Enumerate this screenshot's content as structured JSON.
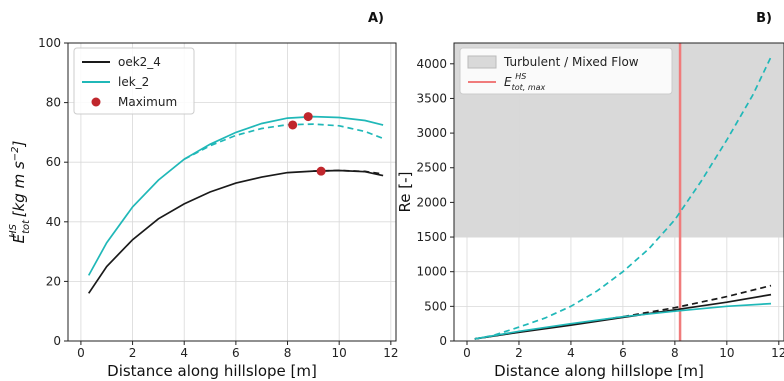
{
  "chart_data": [
    {
      "panel_label": "A)",
      "type": "line",
      "xlabel": "Distance along hillslope [m]",
      "ylabel_main": "E",
      "ylabel_sub": "tot",
      "ylabel_sup": "HS",
      "ylabel_units": " [kg m s",
      "ylabel_units_sup": "−2",
      "ylabel_units_end": "]",
      "xlim": [
        -0.5,
        12.2
      ],
      "ylim": [
        0,
        100
      ],
      "xticks": [
        0,
        2,
        4,
        6,
        8,
        10,
        12
      ],
      "yticks": [
        0,
        20,
        40,
        60,
        80,
        100
      ],
      "grid": true,
      "legend_placement": "top-left",
      "legend": [
        {
          "label": "oek2_4",
          "kind": "line",
          "color": "#1a1a1a"
        },
        {
          "label": "lek_2",
          "kind": "line",
          "color": "#20b8b8"
        },
        {
          "label": "Maximum",
          "kind": "marker",
          "color": "#c0272d"
        }
      ],
      "series": [
        {
          "color": "#1a1a1a",
          "dash": false,
          "x": [
            0.3,
            1,
            2,
            3,
            4,
            5,
            6,
            7,
            8,
            9,
            10,
            11,
            11.7
          ],
          "y": [
            16,
            25,
            34,
            41,
            46,
            50,
            53,
            55,
            56.5,
            57,
            57.2,
            56.8,
            55.5
          ]
        },
        {
          "color": "#1a1a1a",
          "dash": true,
          "x": [
            9,
            10,
            11,
            11.7
          ],
          "y": [
            57,
            57.2,
            56.9,
            56
          ]
        },
        {
          "color": "#20b8b8",
          "dash": false,
          "x": [
            0.3,
            1,
            2,
            3,
            4,
            5,
            6,
            7,
            8,
            9,
            10,
            11,
            11.7
          ],
          "y": [
            22,
            33,
            45,
            54,
            61,
            66,
            70,
            73,
            74.8,
            75.3,
            75,
            74,
            72.5
          ]
        },
        {
          "color": "#20b8b8",
          "dash": true,
          "x": [
            4,
            5,
            6,
            7,
            8,
            9,
            10,
            11,
            11.7
          ],
          "y": [
            61,
            65.5,
            69,
            71.3,
            72.6,
            72.8,
            72.2,
            70.3,
            68
          ]
        }
      ],
      "markers": [
        {
          "x": 8.2,
          "y": 72.5,
          "color": "#c0272d"
        },
        {
          "x": 8.8,
          "y": 75.3,
          "color": "#c0272d"
        },
        {
          "x": 9.3,
          "y": 57,
          "color": "#c0272d"
        }
      ]
    },
    {
      "panel_label": "B)",
      "type": "line",
      "xlabel": "Distance along hillslope [m]",
      "ylabel_main": "Re [-]",
      "xlim": [
        -0.5,
        12.2
      ],
      "ylim": [
        0,
        4300
      ],
      "xticks": [
        0,
        2,
        4,
        6,
        8,
        10,
        12
      ],
      "yticks": [
        0,
        500,
        1000,
        1500,
        2000,
        2500,
        3000,
        3500,
        4000
      ],
      "grid": true,
      "legend_placement": "top-left",
      "shaded_region": {
        "y_from": 1500,
        "y_to": 4300,
        "color": "#d9d9d9"
      },
      "vertical_line": {
        "x": 8.2,
        "color": "#f07b7b"
      },
      "legend": [
        {
          "label": "Turbulent / Mixed Flow",
          "kind": "patch",
          "color": "#d9d9d9"
        },
        {
          "label_main": "E",
          "label_sub": "tot, max",
          "label_sup": "HS",
          "kind": "line",
          "color": "#f07b7b"
        }
      ],
      "series": [
        {
          "color": "#20b8b8",
          "dash": true,
          "x": [
            0.3,
            1,
            2,
            3,
            4,
            5,
            6,
            7,
            8,
            9,
            10,
            11,
            11.7
          ],
          "y": [
            30,
            80,
            200,
            330,
            500,
            720,
            1000,
            1330,
            1750,
            2300,
            2900,
            3550,
            4100
          ]
        },
        {
          "color": "#1a1a1a",
          "dash": true,
          "x": [
            0.3,
            2,
            4,
            6,
            8,
            10,
            11.7
          ],
          "y": [
            30,
            130,
            240,
            350,
            480,
            640,
            800
          ]
        },
        {
          "color": "#1a1a1a",
          "dash": false,
          "x": [
            0.3,
            2,
            4,
            6,
            8,
            10,
            11.7
          ],
          "y": [
            30,
            125,
            230,
            340,
            450,
            560,
            670
          ]
        },
        {
          "color": "#20b8b8",
          "dash": false,
          "x": [
            0.3,
            2,
            4,
            6,
            8,
            10,
            11.7
          ],
          "y": [
            30,
            140,
            250,
            350,
            430,
            500,
            540
          ]
        }
      ]
    }
  ]
}
